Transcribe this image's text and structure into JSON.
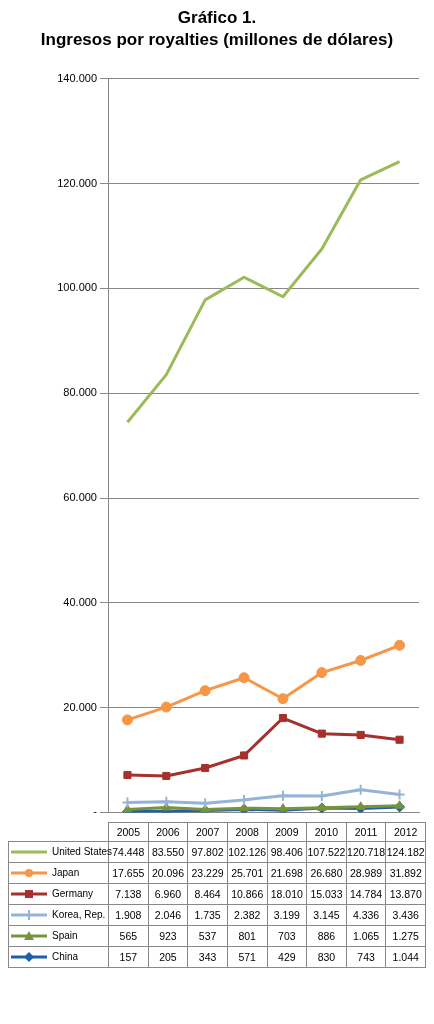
{
  "chart_data": {
    "type": "line",
    "title": "Gráfico 1.",
    "subtitle": "Ingresos por royalties (millones de dólares)",
    "categories": [
      "2005",
      "2006",
      "2007",
      "2008",
      "2009",
      "2010",
      "2011",
      "2012"
    ],
    "series": [
      {
        "name": "United States",
        "color": "#9bbb59",
        "marker": "none",
        "values": [
          74448,
          83550,
          97802,
          102126,
          98406,
          107522,
          120718,
          124182
        ],
        "value_labels": [
          "74.448",
          "83.550",
          "97.802",
          "102.126",
          "98.406",
          "107.522",
          "120.718",
          "124.182"
        ]
      },
      {
        "name": "Japan",
        "color": "#f79646",
        "marker": "circle",
        "values": [
          17655,
          20096,
          23229,
          25701,
          21698,
          26680,
          28989,
          31892
        ],
        "value_labels": [
          "17.655",
          "20.096",
          "23.229",
          "25.701",
          "21.698",
          "26.680",
          "28.989",
          "31.892"
        ]
      },
      {
        "name": "Germany",
        "color": "#a5302c",
        "marker": "square",
        "values": [
          7138,
          6960,
          8464,
          10866,
          18010,
          15033,
          14784,
          13870
        ],
        "value_labels": [
          "7.138",
          "6.960",
          "8.464",
          "10.866",
          "18.010",
          "15.033",
          "14.784",
          "13.870"
        ]
      },
      {
        "name": "Korea, Rep.",
        "color": "#95b3d7",
        "marker": "cross",
        "values": [
          1908,
          2046,
          1735,
          2382,
          3199,
          3145,
          4336,
          3436
        ],
        "value_labels": [
          "1.908",
          "2.046",
          "1.735",
          "2.382",
          "3.199",
          "3.145",
          "4.336",
          "3.436"
        ]
      },
      {
        "name": "Spain",
        "color": "#77933c",
        "marker": "triangle",
        "values": [
          565,
          923,
          537,
          801,
          703,
          886,
          1065,
          1275
        ],
        "value_labels": [
          "565",
          "923",
          "537",
          "801",
          "703",
          "886",
          "1.065",
          "1.275"
        ]
      },
      {
        "name": "China",
        "color": "#1f5fa8",
        "marker": "diamond",
        "values": [
          157,
          205,
          343,
          571,
          429,
          830,
          743,
          1044
        ],
        "value_labels": [
          "157",
          "205",
          "343",
          "571",
          "429",
          "830",
          "743",
          "1.044"
        ]
      }
    ],
    "ylim": [
      0,
      140000
    ],
    "yticks": [
      {
        "value": 0,
        "label": "-"
      },
      {
        "value": 20000,
        "label": "20.000"
      },
      {
        "value": 40000,
        "label": "40.000"
      },
      {
        "value": 60000,
        "label": "60.000"
      },
      {
        "value": 80000,
        "label": "80.000"
      },
      {
        "value": 100000,
        "label": "100.000"
      },
      {
        "value": 120000,
        "label": "120.000"
      },
      {
        "value": 140000,
        "label": "140.000"
      }
    ],
    "grid": "y",
    "legend": "bottom",
    "line_style": "solid"
  }
}
